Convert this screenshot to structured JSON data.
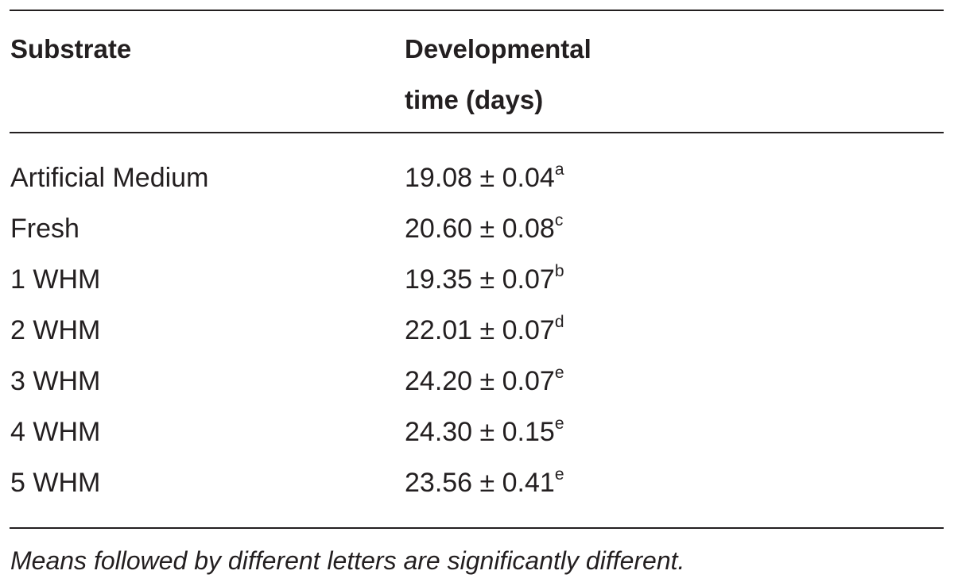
{
  "table": {
    "headers": {
      "substrate": "Substrate",
      "devtime_line1": "Developmental",
      "devtime_line2": "time (days)"
    },
    "rows": [
      {
        "substrate": "Artificial Medium",
        "value": "19.08 ± 0.04",
        "letter": "a"
      },
      {
        "substrate": "Fresh",
        "value": "20.60 ± 0.08",
        "letter": "c"
      },
      {
        "substrate": "1 WHM",
        "value": "19.35 ± 0.07",
        "letter": "b"
      },
      {
        "substrate": "2 WHM",
        "value": "22.01 ± 0.07",
        "letter": "d"
      },
      {
        "substrate": "3 WHM",
        "value": "24.20 ± 0.07",
        "letter": "e"
      },
      {
        "substrate": "4 WHM",
        "value": "24.30 ± 0.15",
        "letter": "e"
      },
      {
        "substrate": "5 WHM",
        "value": "23.56 ± 0.41",
        "letter": "e"
      }
    ],
    "footnote": "Means followed by different letters are significantly different."
  }
}
